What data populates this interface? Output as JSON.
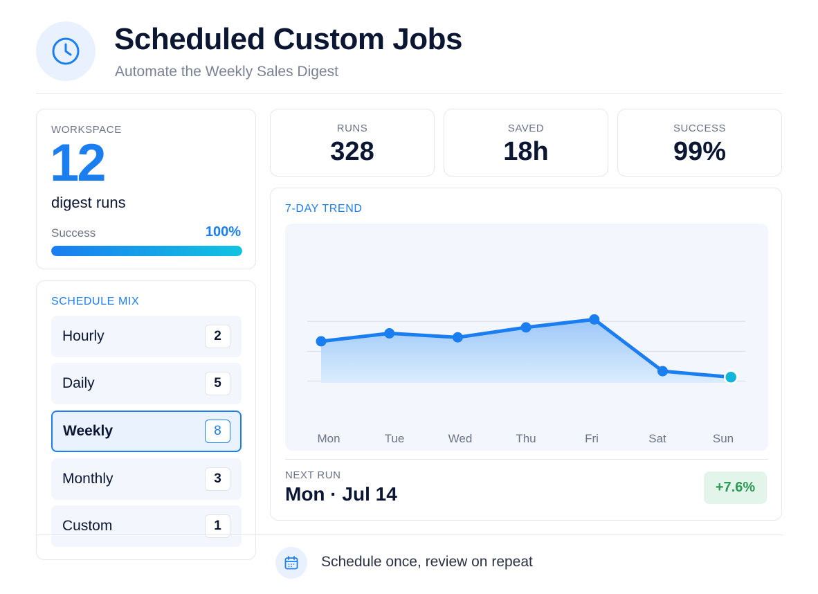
{
  "header": {
    "title": "Scheduled Custom Jobs",
    "subtitle": "Automate the Weekly Sales Digest",
    "icon": "clock-icon"
  },
  "workspace": {
    "label": "WORKSPACE",
    "count": "12",
    "unit": "digest runs",
    "success_label": "Success",
    "success_value": "100%",
    "success_fraction": 1.0
  },
  "schedule_mix": {
    "label": "SCHEDULE MIX",
    "items": [
      {
        "name": "Hourly",
        "count": "2",
        "selected": false
      },
      {
        "name": "Daily",
        "count": "5",
        "selected": false
      },
      {
        "name": "Weekly",
        "count": "8",
        "selected": true
      },
      {
        "name": "Monthly",
        "count": "3",
        "selected": false
      },
      {
        "name": "Custom",
        "count": "1",
        "selected": false
      }
    ]
  },
  "stats": [
    {
      "label": "RUNS",
      "value": "328"
    },
    {
      "label": "SAVED",
      "value": "18h"
    },
    {
      "label": "SUCCESS",
      "value": "99%"
    }
  ],
  "trend": {
    "label": "7-DAY TREND",
    "next_run_label": "NEXT RUN",
    "next_run_value": "Mon · Jul 14",
    "delta": "+7.6%"
  },
  "chart_data": {
    "type": "area",
    "title": "7-DAY TREND",
    "categories": [
      "Mon",
      "Tue",
      "Wed",
      "Thu",
      "Fri",
      "Sat",
      "Sun"
    ],
    "values": [
      60,
      64,
      62,
      67,
      71,
      45,
      42
    ],
    "ylim": [
      20,
      100
    ],
    "grid": true,
    "colors": {
      "line": "#1a7df0",
      "last_point": "#11b5d9"
    }
  },
  "footer": {
    "text": "Schedule once, review on repeat",
    "icon": "calendar-icon"
  },
  "colors": {
    "accent": "#1a7df0",
    "success": "#2b9a55"
  }
}
